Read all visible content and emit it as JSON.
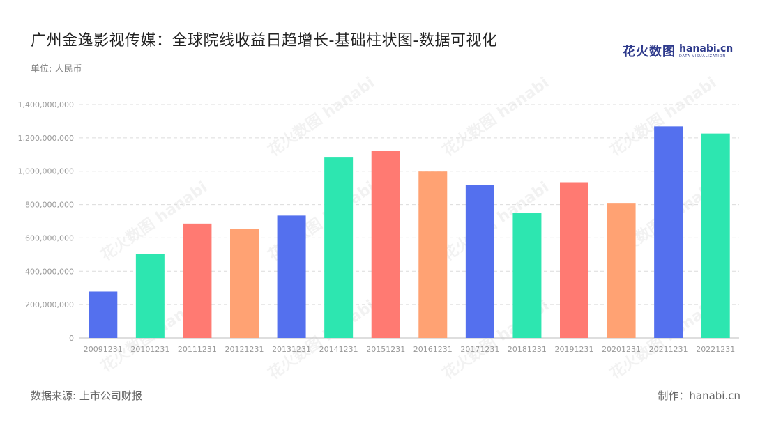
{
  "header": {
    "title": "广州金逸影视传媒：全球院线收益日趋增长-基础柱状图-数据可视化",
    "unit": "单位: 人民币"
  },
  "logo": {
    "cn": "花火数图",
    "en": "hanabi.cn",
    "sub": "DATA VISUALIZATION",
    "icon": "sparkle-icon"
  },
  "footer": {
    "source": "数据来源: 上市公司财报",
    "credit": "制作：hanabi.cn"
  },
  "chart_data": {
    "type": "bar",
    "categories": [
      "20091231",
      "20101231",
      "20111231",
      "20121231",
      "20131231",
      "20141231",
      "20151231",
      "20161231",
      "20171231",
      "20181231",
      "20191231",
      "20201231",
      "20211231",
      "20221231"
    ],
    "values": [
      278000000,
      505000000,
      686000000,
      656000000,
      734000000,
      1082000000,
      1124000000,
      998000000,
      917000000,
      748000000,
      934000000,
      806000000,
      1269000000,
      1226000000
    ],
    "ylim": [
      0,
      1400000000
    ],
    "yticks": [
      0,
      200000000,
      400000000,
      600000000,
      800000000,
      1000000000,
      1200000000,
      1400000000
    ],
    "palette": [
      "#5470ee",
      "#2de6b0",
      "#ff7a72",
      "#ffa273"
    ],
    "grid": true
  }
}
